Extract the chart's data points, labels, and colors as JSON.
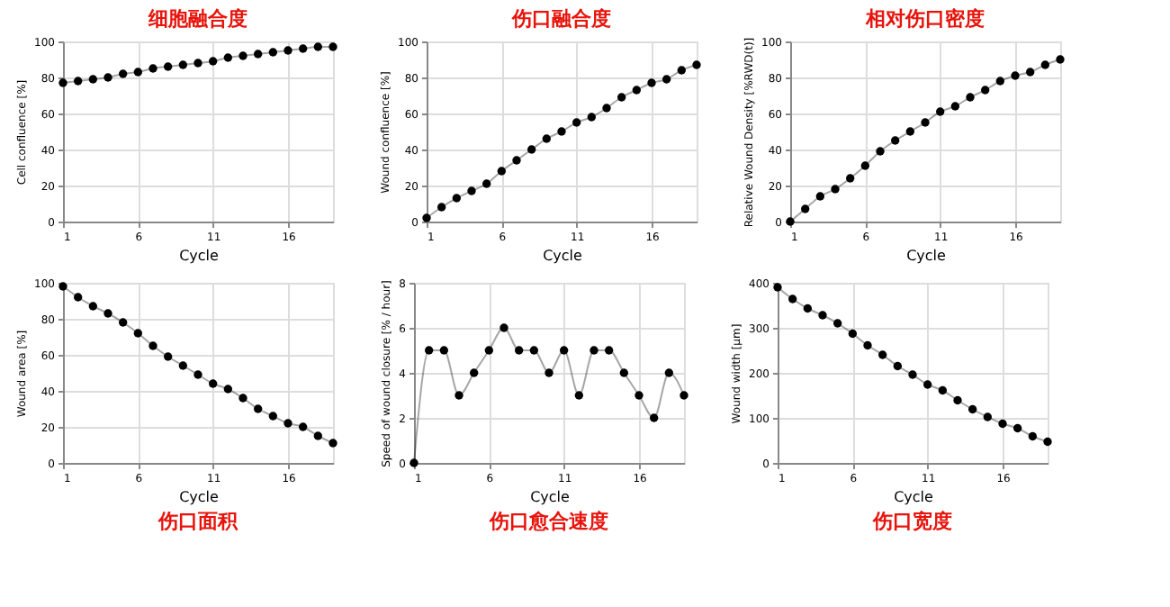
{
  "chart_data": [
    {
      "type": "line",
      "title": "细胞融合度",
      "xlabel": "Cycle",
      "ylabel": "Cell confluence [%]",
      "x": [
        1,
        2,
        3,
        4,
        5,
        6,
        7,
        8,
        9,
        10,
        11,
        12,
        13,
        14,
        15,
        16,
        17,
        18,
        19
      ],
      "xlim": [
        1,
        19
      ],
      "xticks": [
        1,
        6,
        11,
        16
      ],
      "ylim": [
        0,
        100
      ],
      "yticks": [
        0,
        20,
        40,
        60,
        80,
        100
      ],
      "grid": true,
      "marker": "circle",
      "series": [
        {
          "color": "#000000",
          "values": [
            77,
            78,
            79,
            80,
            82,
            83,
            85,
            86,
            87,
            88,
            89,
            91,
            92,
            93,
            94,
            95,
            96,
            97,
            97
          ]
        }
      ]
    },
    {
      "type": "line",
      "title": "伤口融合度",
      "xlabel": "Cycle",
      "ylabel": "Wound confluence [%]",
      "x": [
        1,
        2,
        3,
        4,
        5,
        6,
        7,
        8,
        9,
        10,
        11,
        12,
        13,
        14,
        15,
        16,
        17,
        18,
        19
      ],
      "xlim": [
        1,
        19
      ],
      "xticks": [
        1,
        6,
        11,
        16
      ],
      "ylim": [
        0,
        100
      ],
      "yticks": [
        0,
        20,
        40,
        60,
        80,
        100
      ],
      "grid": true,
      "marker": "circle",
      "series": [
        {
          "color": "#000000",
          "values": [
            2,
            8,
            13,
            17,
            21,
            28,
            34,
            40,
            46,
            50,
            55,
            58,
            63,
            69,
            73,
            77,
            79,
            84,
            87
          ]
        }
      ]
    },
    {
      "type": "line",
      "title": "相对伤口密度",
      "xlabel": "Cycle",
      "ylabel": "Relative Wound Density [%RWD(t)]",
      "x": [
        1,
        2,
        3,
        4,
        5,
        6,
        7,
        8,
        9,
        10,
        11,
        12,
        13,
        14,
        15,
        16,
        17,
        18,
        19
      ],
      "xlim": [
        1,
        19
      ],
      "xticks": [
        1,
        6,
        11,
        16
      ],
      "ylim": [
        0,
        100
      ],
      "yticks": [
        0,
        20,
        40,
        60,
        80,
        100
      ],
      "grid": true,
      "marker": "circle",
      "series": [
        {
          "color": "#000000",
          "values": [
            0,
            7,
            14,
            18,
            24,
            31,
            39,
            45,
            50,
            55,
            61,
            64,
            69,
            73,
            78,
            81,
            83,
            87,
            90
          ]
        }
      ]
    },
    {
      "type": "line",
      "title": "伤口面积",
      "xlabel": "Cycle",
      "ylabel": "Wound area [%]",
      "x": [
        1,
        2,
        3,
        4,
        5,
        6,
        7,
        8,
        9,
        10,
        11,
        12,
        13,
        14,
        15,
        16,
        17,
        18,
        19
      ],
      "xlim": [
        1,
        19
      ],
      "xticks": [
        1,
        6,
        11,
        16
      ],
      "ylim": [
        0,
        100
      ],
      "yticks": [
        0,
        20,
        40,
        60,
        80,
        100
      ],
      "grid": true,
      "marker": "circle",
      "series": [
        {
          "color": "#000000",
          "values": [
            98,
            92,
            87,
            83,
            78,
            72,
            65,
            59,
            54,
            49,
            44,
            41,
            36,
            30,
            26,
            22,
            20,
            15,
            11
          ]
        }
      ]
    },
    {
      "type": "line",
      "title": "伤口愈合速度",
      "xlabel": "Cycle",
      "ylabel": "Speed of wound closure [% / hour]",
      "x": [
        1,
        2,
        3,
        4,
        5,
        6,
        7,
        8,
        9,
        10,
        11,
        12,
        13,
        14,
        15,
        16,
        17,
        18,
        19
      ],
      "xlim": [
        1,
        19
      ],
      "xticks": [
        1,
        6,
        11,
        16
      ],
      "ylim": [
        0,
        8
      ],
      "yticks": [
        0,
        2,
        4,
        6,
        8
      ],
      "grid": true,
      "marker": "circle",
      "series": [
        {
          "color": "#000000",
          "values": [
            0,
            5,
            5,
            3,
            4,
            5,
            6,
            5,
            5,
            4,
            5,
            3,
            5,
            5,
            4,
            3,
            2,
            4,
            3
          ]
        }
      ]
    },
    {
      "type": "line",
      "title": "伤口宽度",
      "xlabel": "Cycle",
      "ylabel": "Wound width [μm]",
      "x": [
        1,
        2,
        3,
        4,
        5,
        6,
        7,
        8,
        9,
        10,
        11,
        12,
        13,
        14,
        15,
        16,
        17,
        18,
        19
      ],
      "xlim": [
        1,
        19
      ],
      "xticks": [
        1,
        6,
        11,
        16
      ],
      "ylim": [
        0,
        400
      ],
      "yticks": [
        0,
        100,
        200,
        300,
        400
      ],
      "grid": true,
      "marker": "circle",
      "series": [
        {
          "color": "#000000",
          "values": [
            390,
            364,
            343,
            328,
            310,
            287,
            261,
            240,
            215,
            196,
            174,
            161,
            139,
            119,
            102,
            87,
            77,
            59,
            47
          ]
        }
      ]
    }
  ]
}
